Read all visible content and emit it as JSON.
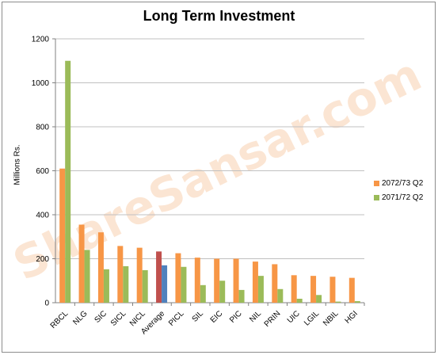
{
  "chart_data": {
    "type": "bar",
    "title": "Long Term Investment",
    "xlabel": "",
    "ylabel": "Millions Rs.",
    "ylim": [
      0,
      1200
    ],
    "yticks": [
      0,
      200,
      400,
      600,
      800,
      1000,
      1200
    ],
    "grid": true,
    "legend_position": "right",
    "categories": [
      "RBCL",
      "NLG",
      "SIC",
      "SICL",
      "NICL",
      "Average",
      "PICL",
      "SIL",
      "EIC",
      "PIC",
      "NIL",
      "PRIN",
      "UIC",
      "LGIL",
      "NBIL",
      "HGI"
    ],
    "series": [
      {
        "name": "2072/73 Q2",
        "color": "#f79646",
        "values": [
          610,
          355,
          320,
          258,
          250,
          233,
          225,
          205,
          200,
          200,
          187,
          175,
          125,
          122,
          118,
          113
        ]
      },
      {
        "name": "2071/72 Q2",
        "color": "#9bbb59",
        "values": [
          1100,
          240,
          152,
          166,
          148,
          170,
          163,
          80,
          100,
          58,
          122,
          62,
          18,
          35,
          5,
          7
        ]
      }
    ],
    "highlight": {
      "category": "Average",
      "colors": [
        "#c0504d",
        "#4f81bd"
      ]
    }
  },
  "watermark": {
    "text": "ShareSansar.com",
    "color": "#f8d0b0"
  }
}
